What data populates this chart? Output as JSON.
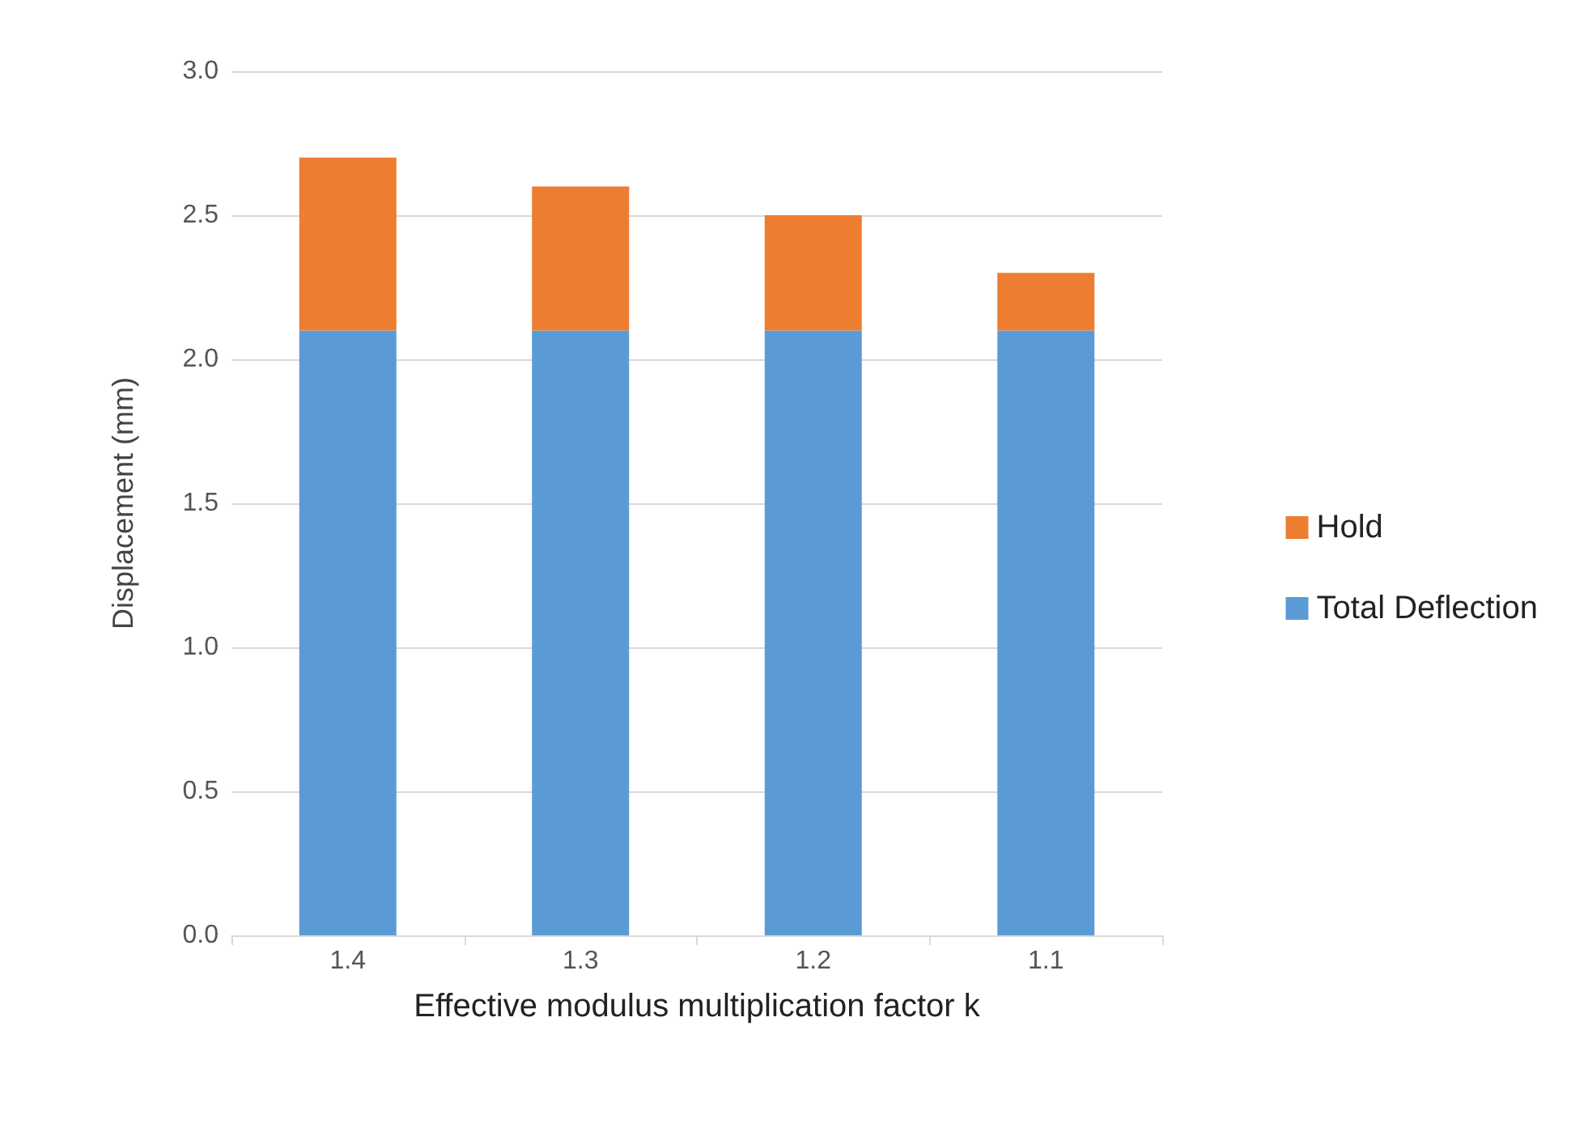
{
  "chart_data": {
    "type": "bar",
    "stacked": true,
    "xlabel": "Effective modulus multiplication factor k",
    "ylabel": "Displacement (mm)",
    "categories": [
      "1.4",
      "1.3",
      "1.2",
      "1.1"
    ],
    "series": [
      {
        "name": "Total Deflection",
        "color": "#5b9bd5",
        "values": [
          2.1,
          2.1,
          2.1,
          2.1
        ]
      },
      {
        "name": "Hold",
        "color": "#ed7d31",
        "values": [
          0.6,
          0.5,
          0.4,
          0.2
        ]
      }
    ],
    "ylim": [
      0,
      3
    ],
    "yticks": [
      {
        "value": 0,
        "label": "0.0"
      },
      {
        "value": 0.5,
        "label": "0.5"
      },
      {
        "value": 1,
        "label": "1.0"
      },
      {
        "value": 1.5,
        "label": "1.5"
      },
      {
        "value": 2,
        "label": "2.0"
      },
      {
        "value": 2.5,
        "label": "2.5"
      },
      {
        "value": 3,
        "label": "3.0"
      }
    ],
    "grid": "y",
    "legend": "right"
  }
}
